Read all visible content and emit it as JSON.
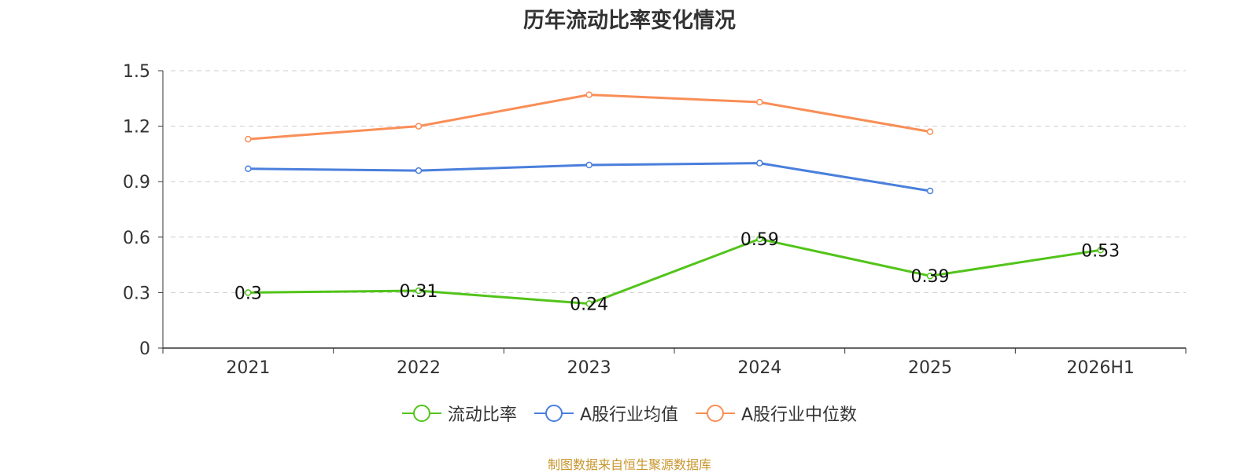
{
  "title": "历年流动比率变化情况",
  "source_note": "制图数据来自恒生聚源数据库",
  "chart_data": {
    "type": "line",
    "title": "历年流动比率变化情况",
    "categories": [
      "2021",
      "2022",
      "2023",
      "2024",
      "2025",
      "2026H1"
    ],
    "ylim": [
      0,
      1.5
    ],
    "yticks": [
      "0",
      "0.3",
      "0.6",
      "0.9",
      "1.2",
      "1.5"
    ],
    "grid": true,
    "legend_position": "bottom",
    "series": [
      {
        "name": "流动比率",
        "color": "#52c41a",
        "values": [
          0.3,
          0.31,
          0.24,
          0.59,
          0.39,
          0.53
        ],
        "labels": [
          "0.3",
          "0.31",
          "0.24",
          "0.59",
          "0.39",
          "0.53"
        ]
      },
      {
        "name": "A股行业均值",
        "color": "#4a7fdc",
        "values": [
          0.97,
          0.96,
          0.99,
          1.0,
          0.85,
          null
        ]
      },
      {
        "name": "A股行业中位数",
        "color": "#f98e57",
        "values": [
          1.13,
          1.2,
          1.37,
          1.33,
          1.17,
          null
        ]
      }
    ]
  }
}
